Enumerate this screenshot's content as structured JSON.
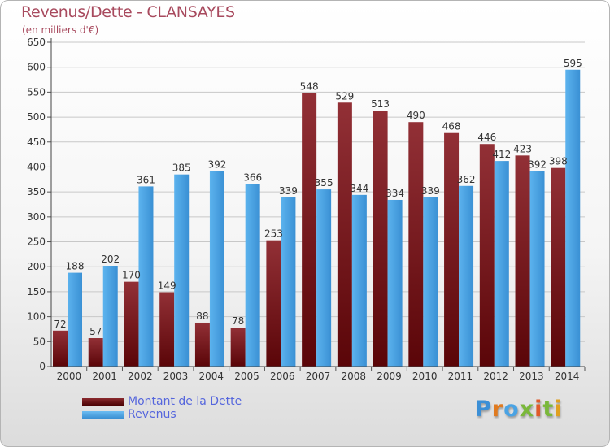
{
  "header": {
    "title": "Revenus/Dette - CLANSAYES",
    "subtitle": "(en milliers d'€)"
  },
  "colors": {
    "debt": "#7a1a1e",
    "revenue": "#3e9bde",
    "axis_text": "#333333",
    "title": "#a84a5e",
    "legend_text": "#5566dd"
  },
  "legend": {
    "items": [
      {
        "label": "Montant de la Dette",
        "color": "#6e1216"
      },
      {
        "label": "Revenus",
        "color": "#4aa3e4"
      }
    ]
  },
  "brand": {
    "logo_text": "Proxiti"
  },
  "chart_data": {
    "type": "bar",
    "title": "Revenus/Dette - CLANSAYES",
    "ylabel": "(en milliers d'€)",
    "xlabel": "",
    "ylim": [
      0,
      650
    ],
    "yticks": [
      0,
      50,
      100,
      150,
      200,
      250,
      300,
      350,
      400,
      450,
      500,
      550,
      600,
      650
    ],
    "grid": true,
    "legend_position": "bottom-left",
    "categories": [
      "2000",
      "2001",
      "2002",
      "2003",
      "2004",
      "2005",
      "2006",
      "2007",
      "2008",
      "2009",
      "2010",
      "2011",
      "2012",
      "2013",
      "2014"
    ],
    "series": [
      {
        "name": "Montant de la Dette",
        "values": [
          72,
          57,
          170,
          149,
          88,
          78,
          253,
          548,
          529,
          513,
          490,
          468,
          446,
          423,
          398
        ]
      },
      {
        "name": "Revenus",
        "values": [
          188,
          202,
          361,
          385,
          392,
          366,
          339,
          355,
          344,
          334,
          339,
          362,
          412,
          392,
          595
        ]
      }
    ]
  }
}
